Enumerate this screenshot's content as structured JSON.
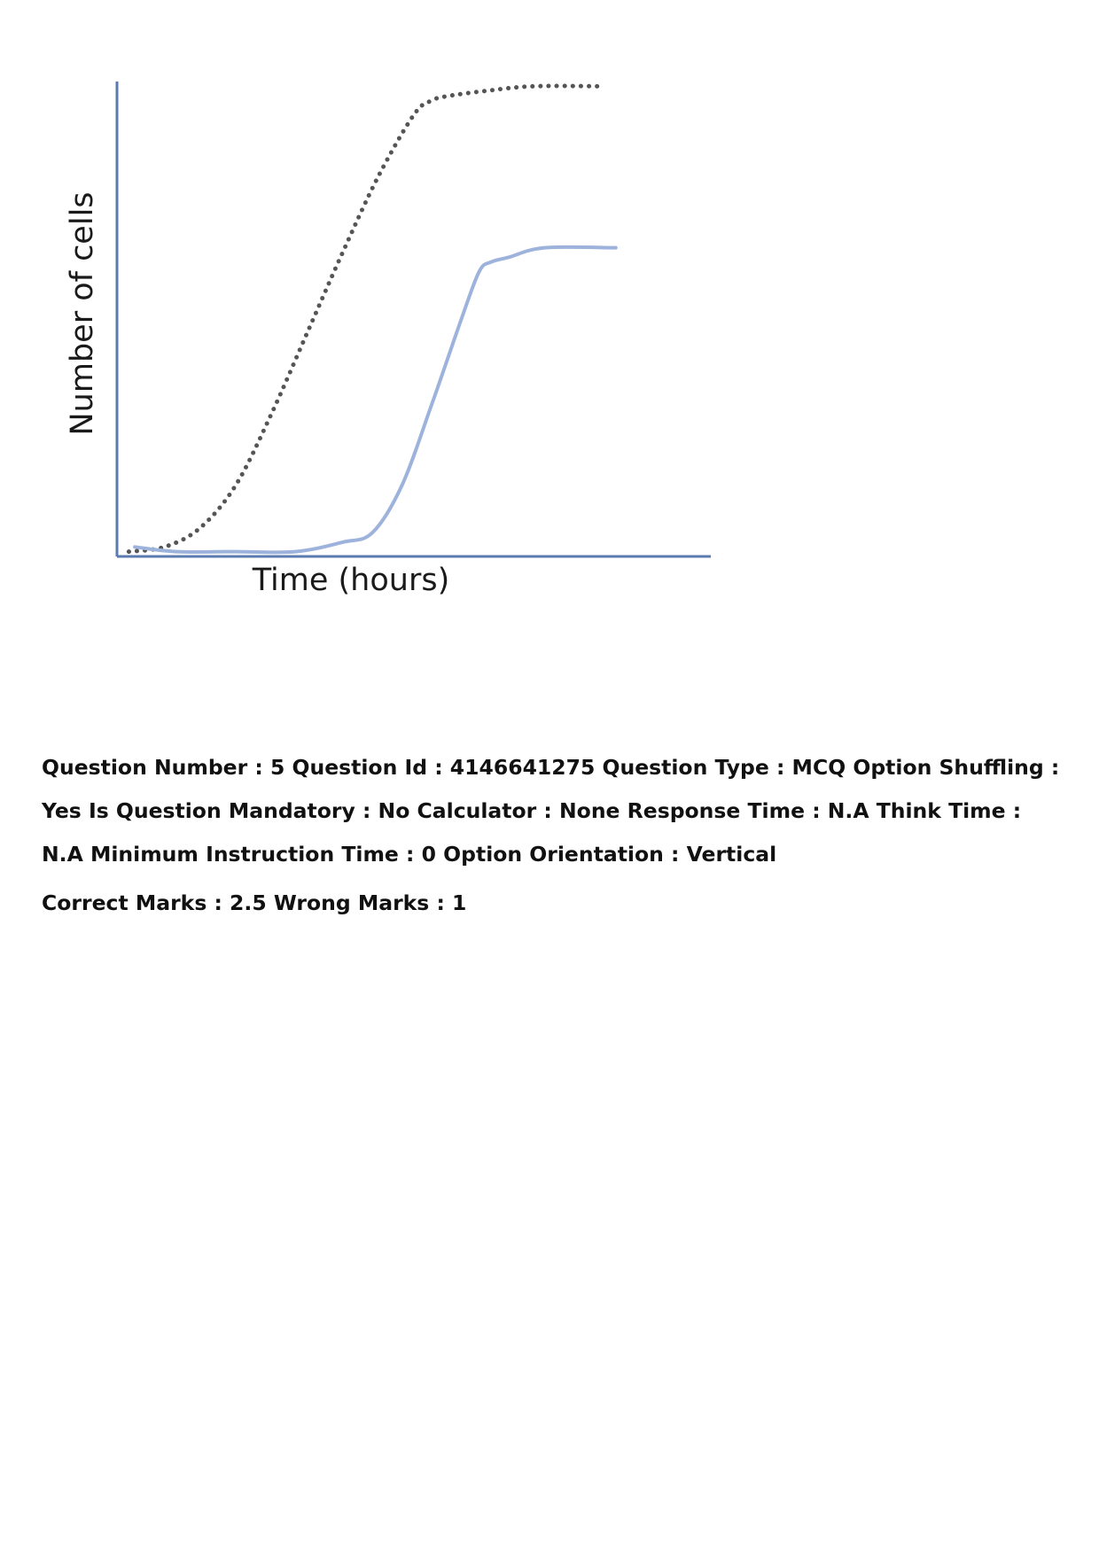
{
  "figure": {
    "xlabel": "Time (hours)",
    "ylabel": "Number of cells",
    "colors": {
      "axis": "#5b7bb0",
      "dotted_curve": "#555555",
      "solid_curve": "#9db3dc"
    }
  },
  "chart_data": {
    "type": "line",
    "title": "",
    "xlabel": "Time (hours)",
    "ylabel": "Number of cells",
    "grid": false,
    "legend": "none",
    "xlim": [
      0,
      1
    ],
    "ylim": [
      0,
      1
    ],
    "series": [
      {
        "style": "dotted",
        "color": "#555555",
        "x": [
          0.02,
          0.08,
          0.14,
          0.2,
          0.26,
          0.32,
          0.38,
          0.44,
          0.5,
          0.53,
          0.56,
          0.62,
          0.7,
          0.82
        ],
        "y": [
          0.01,
          0.02,
          0.06,
          0.15,
          0.3,
          0.47,
          0.64,
          0.8,
          0.93,
          0.96,
          0.97,
          0.98,
          0.99,
          0.99
        ]
      },
      {
        "style": "solid",
        "color": "#9db3dc",
        "x": [
          0.03,
          0.1,
          0.2,
          0.3,
          0.38,
          0.43,
          0.48,
          0.53,
          0.58,
          0.61,
          0.63,
          0.66,
          0.72,
          0.84
        ],
        "y": [
          0.02,
          0.01,
          0.01,
          0.01,
          0.03,
          0.05,
          0.15,
          0.32,
          0.5,
          0.6,
          0.62,
          0.63,
          0.65,
          0.65
        ]
      }
    ]
  },
  "meta": {
    "line1": "Question Number : 5 Question Id : 4146641275 Question Type : MCQ Option Shuffling : Yes Is Question Mandatory : No Calculator : None Response Time : N.A Think Time : N.A Minimum Instruction Time : 0 Option Orientation : Vertical",
    "marks": "Correct Marks : 2.5 Wrong Marks : 1"
  }
}
